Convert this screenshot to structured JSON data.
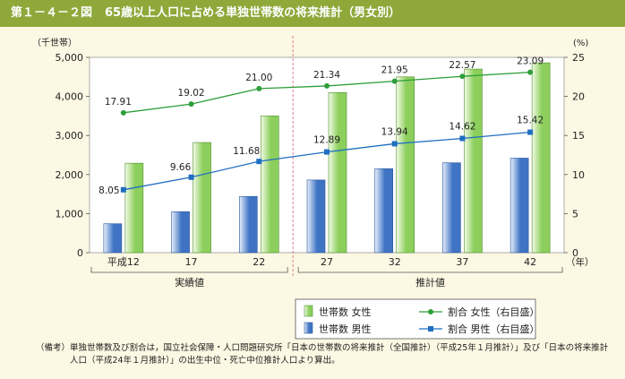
{
  "figure": {
    "number": "第１－４－２図",
    "title": "65歳以上人口に占める単独世帯数の将来推計（男女別）"
  },
  "note": {
    "head": "（備考）",
    "text": "単独世帯数及び割合は，国立社会保障・人口問題研究所「日本の世帯数の将来推計（全国推計）（平成25年１月推計）」及び「日本の将来推計人口（平成24年１月推計）」の出生中位・死亡中位推計人口より算出。"
  },
  "chart_data": {
    "type": "bar",
    "title": "65歳以上人口に占める単独世帯数の将来推計（男女別）",
    "categories": [
      "平成12",
      "17",
      "22",
      "27",
      "32",
      "37",
      "42"
    ],
    "x_unit": "（年）",
    "left_axis": {
      "label": "（千世帯）",
      "min": 0,
      "max": 5000,
      "ticks": [
        "0",
        "1,000",
        "2,000",
        "3,000",
        "4,000",
        "5,000"
      ]
    },
    "right_axis": {
      "label": "(%)",
      "min": 0,
      "max": 25,
      "ticks": [
        "0",
        "5",
        "10",
        "15",
        "20",
        "25"
      ]
    },
    "groups": [
      {
        "label": "実績値",
        "from": 0,
        "to": 2
      },
      {
        "label": "推計値",
        "from": 3,
        "to": 6
      }
    ],
    "bar_series": [
      {
        "name": "世帯数 男性",
        "color": "#3f74c4",
        "values": [
          740,
          1050,
          1440,
          1860,
          2150,
          2300,
          2420
        ]
      },
      {
        "name": "世帯数 女性",
        "color": "#8ccf5c",
        "values": [
          2290,
          2820,
          3500,
          4100,
          4500,
          4700,
          4860
        ]
      }
    ],
    "line_series": [
      {
        "name": "割合 女性（右目盛）",
        "color": "#2e9e3a",
        "values": [
          17.91,
          19.02,
          21.0,
          21.34,
          21.95,
          22.57,
          23.09
        ],
        "labels": [
          "17.91",
          "19.02",
          "21.00",
          "21.34",
          "21.95",
          "22.57",
          "23.09"
        ]
      },
      {
        "name": "割合 男性（右目盛）",
        "color": "#1f6fc0",
        "values": [
          8.05,
          9.66,
          11.68,
          12.89,
          13.94,
          14.62,
          15.42
        ],
        "labels": [
          "8.05",
          "9.66",
          "11.68",
          "12.89",
          "13.94",
          "14.62",
          "15.42"
        ]
      }
    ],
    "legend": [
      {
        "kind": "bar",
        "series": "世帯数 女性",
        "color": "#8ccf5c"
      },
      {
        "kind": "line",
        "series": "割合 女性（右目盛）",
        "color": "#2e9e3a"
      },
      {
        "kind": "bar",
        "series": "世帯数 男性",
        "color": "#3f74c4"
      },
      {
        "kind": "line",
        "series": "割合 男性（右目盛）",
        "color": "#1f6fc0"
      }
    ],
    "legend_position": "bottom-right"
  }
}
